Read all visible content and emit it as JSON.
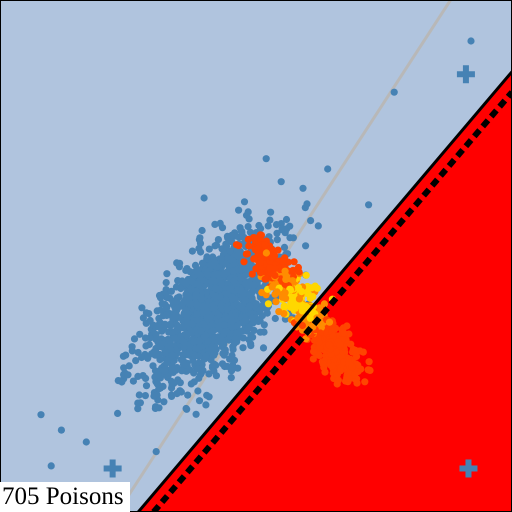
{
  "count_label": "705 Poisons",
  "colors": {
    "clean_region": "#b0c4de",
    "poison_region": "#ff0000",
    "clean_points": "#4682b4",
    "poison_points_outer": "#ff4500",
    "poison_points_inner": "#ff8c00",
    "poison_points_core": "#ffd700",
    "boundary_line": "#000000",
    "dashed_boundary": "#000000",
    "reference_line": "#b8b8b8"
  },
  "chart_data": {
    "type": "scatter",
    "title": "",
    "xlabel": "",
    "ylabel": "",
    "xlim": [
      0,
      1
    ],
    "ylim": [
      0,
      1
    ],
    "grid": false,
    "boundaries": {
      "decision_line": {
        "points": [
          [
            0.27,
            0.0
          ],
          [
            1.0,
            0.86
          ]
        ]
      },
      "dashed_line": {
        "points": [
          [
            0.3,
            0.0
          ],
          [
            1.0,
            0.82
          ]
        ]
      },
      "reference_line": {
        "points": [
          [
            0.23,
            0.0
          ],
          [
            0.88,
            1.0
          ]
        ]
      }
    },
    "series": [
      {
        "group": "clean",
        "marker": "circle",
        "cluster": {
          "center": [
            0.42,
            0.4
          ],
          "spread_along": 0.09,
          "spread_across": 0.045,
          "count": 1400
        },
        "outliers": [
          [
            0.08,
            0.19
          ],
          [
            0.12,
            0.16
          ],
          [
            0.1,
            0.09
          ],
          [
            0.72,
            0.6
          ],
          [
            0.64,
            0.67
          ],
          [
            0.77,
            0.82
          ],
          [
            0.92,
            0.92
          ],
          [
            0.52,
            0.69
          ]
        ]
      },
      {
        "group": "poison",
        "marker": "circle",
        "cluster": {
          "start": [
            0.5,
            0.52
          ],
          "end": [
            0.69,
            0.27
          ],
          "width": 0.018,
          "count": 705
        }
      }
    ],
    "target_markers": [
      {
        "label": "",
        "x": 0.91,
        "y": 0.855,
        "marker": "plus"
      },
      {
        "label": "",
        "x": 0.22,
        "y": 0.085,
        "marker": "plus"
      },
      {
        "label": "",
        "x": 0.915,
        "y": 0.085,
        "marker": "plus"
      }
    ]
  }
}
